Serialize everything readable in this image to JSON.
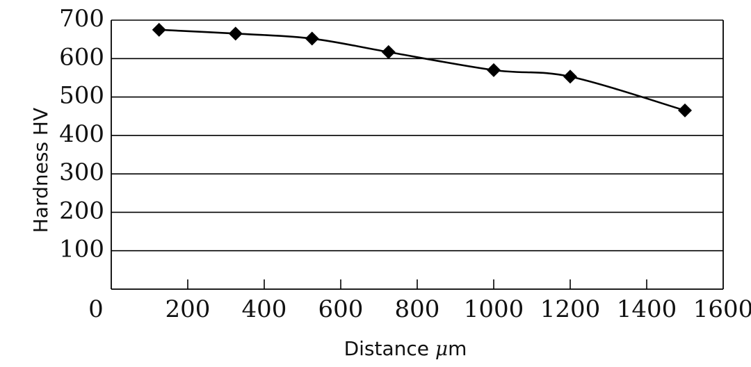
{
  "chart_data": {
    "type": "line",
    "title": "",
    "xlabel_main": "Distance ",
    "xlabel_unit_mu": "μ",
    "xlabel_unit_rest": "m",
    "ylabel": "Hardness HV",
    "xlim": [
      0,
      1600
    ],
    "ylim": [
      0,
      700
    ],
    "xticks": [
      0,
      200,
      400,
      600,
      800,
      1000,
      1200,
      1400,
      1600
    ],
    "xtick_labels": [
      "0",
      "200",
      "400",
      "600",
      "800",
      "1000",
      "1200",
      "1400",
      "1600"
    ],
    "yticks": [
      100,
      200,
      300,
      400,
      500,
      600,
      700
    ],
    "ytick_labels": [
      "100",
      "200",
      "300",
      "400",
      "500",
      "600",
      "700"
    ],
    "grid": "horizontal",
    "marker": "diamond",
    "colors": {
      "line": "#000000",
      "marker": "#000000",
      "grid": "#000000"
    },
    "series": [
      {
        "x": [
          125,
          325,
          525,
          725,
          1000,
          1200,
          1500
        ],
        "y": [
          675,
          665,
          652,
          617,
          570,
          553,
          465
        ]
      }
    ]
  }
}
